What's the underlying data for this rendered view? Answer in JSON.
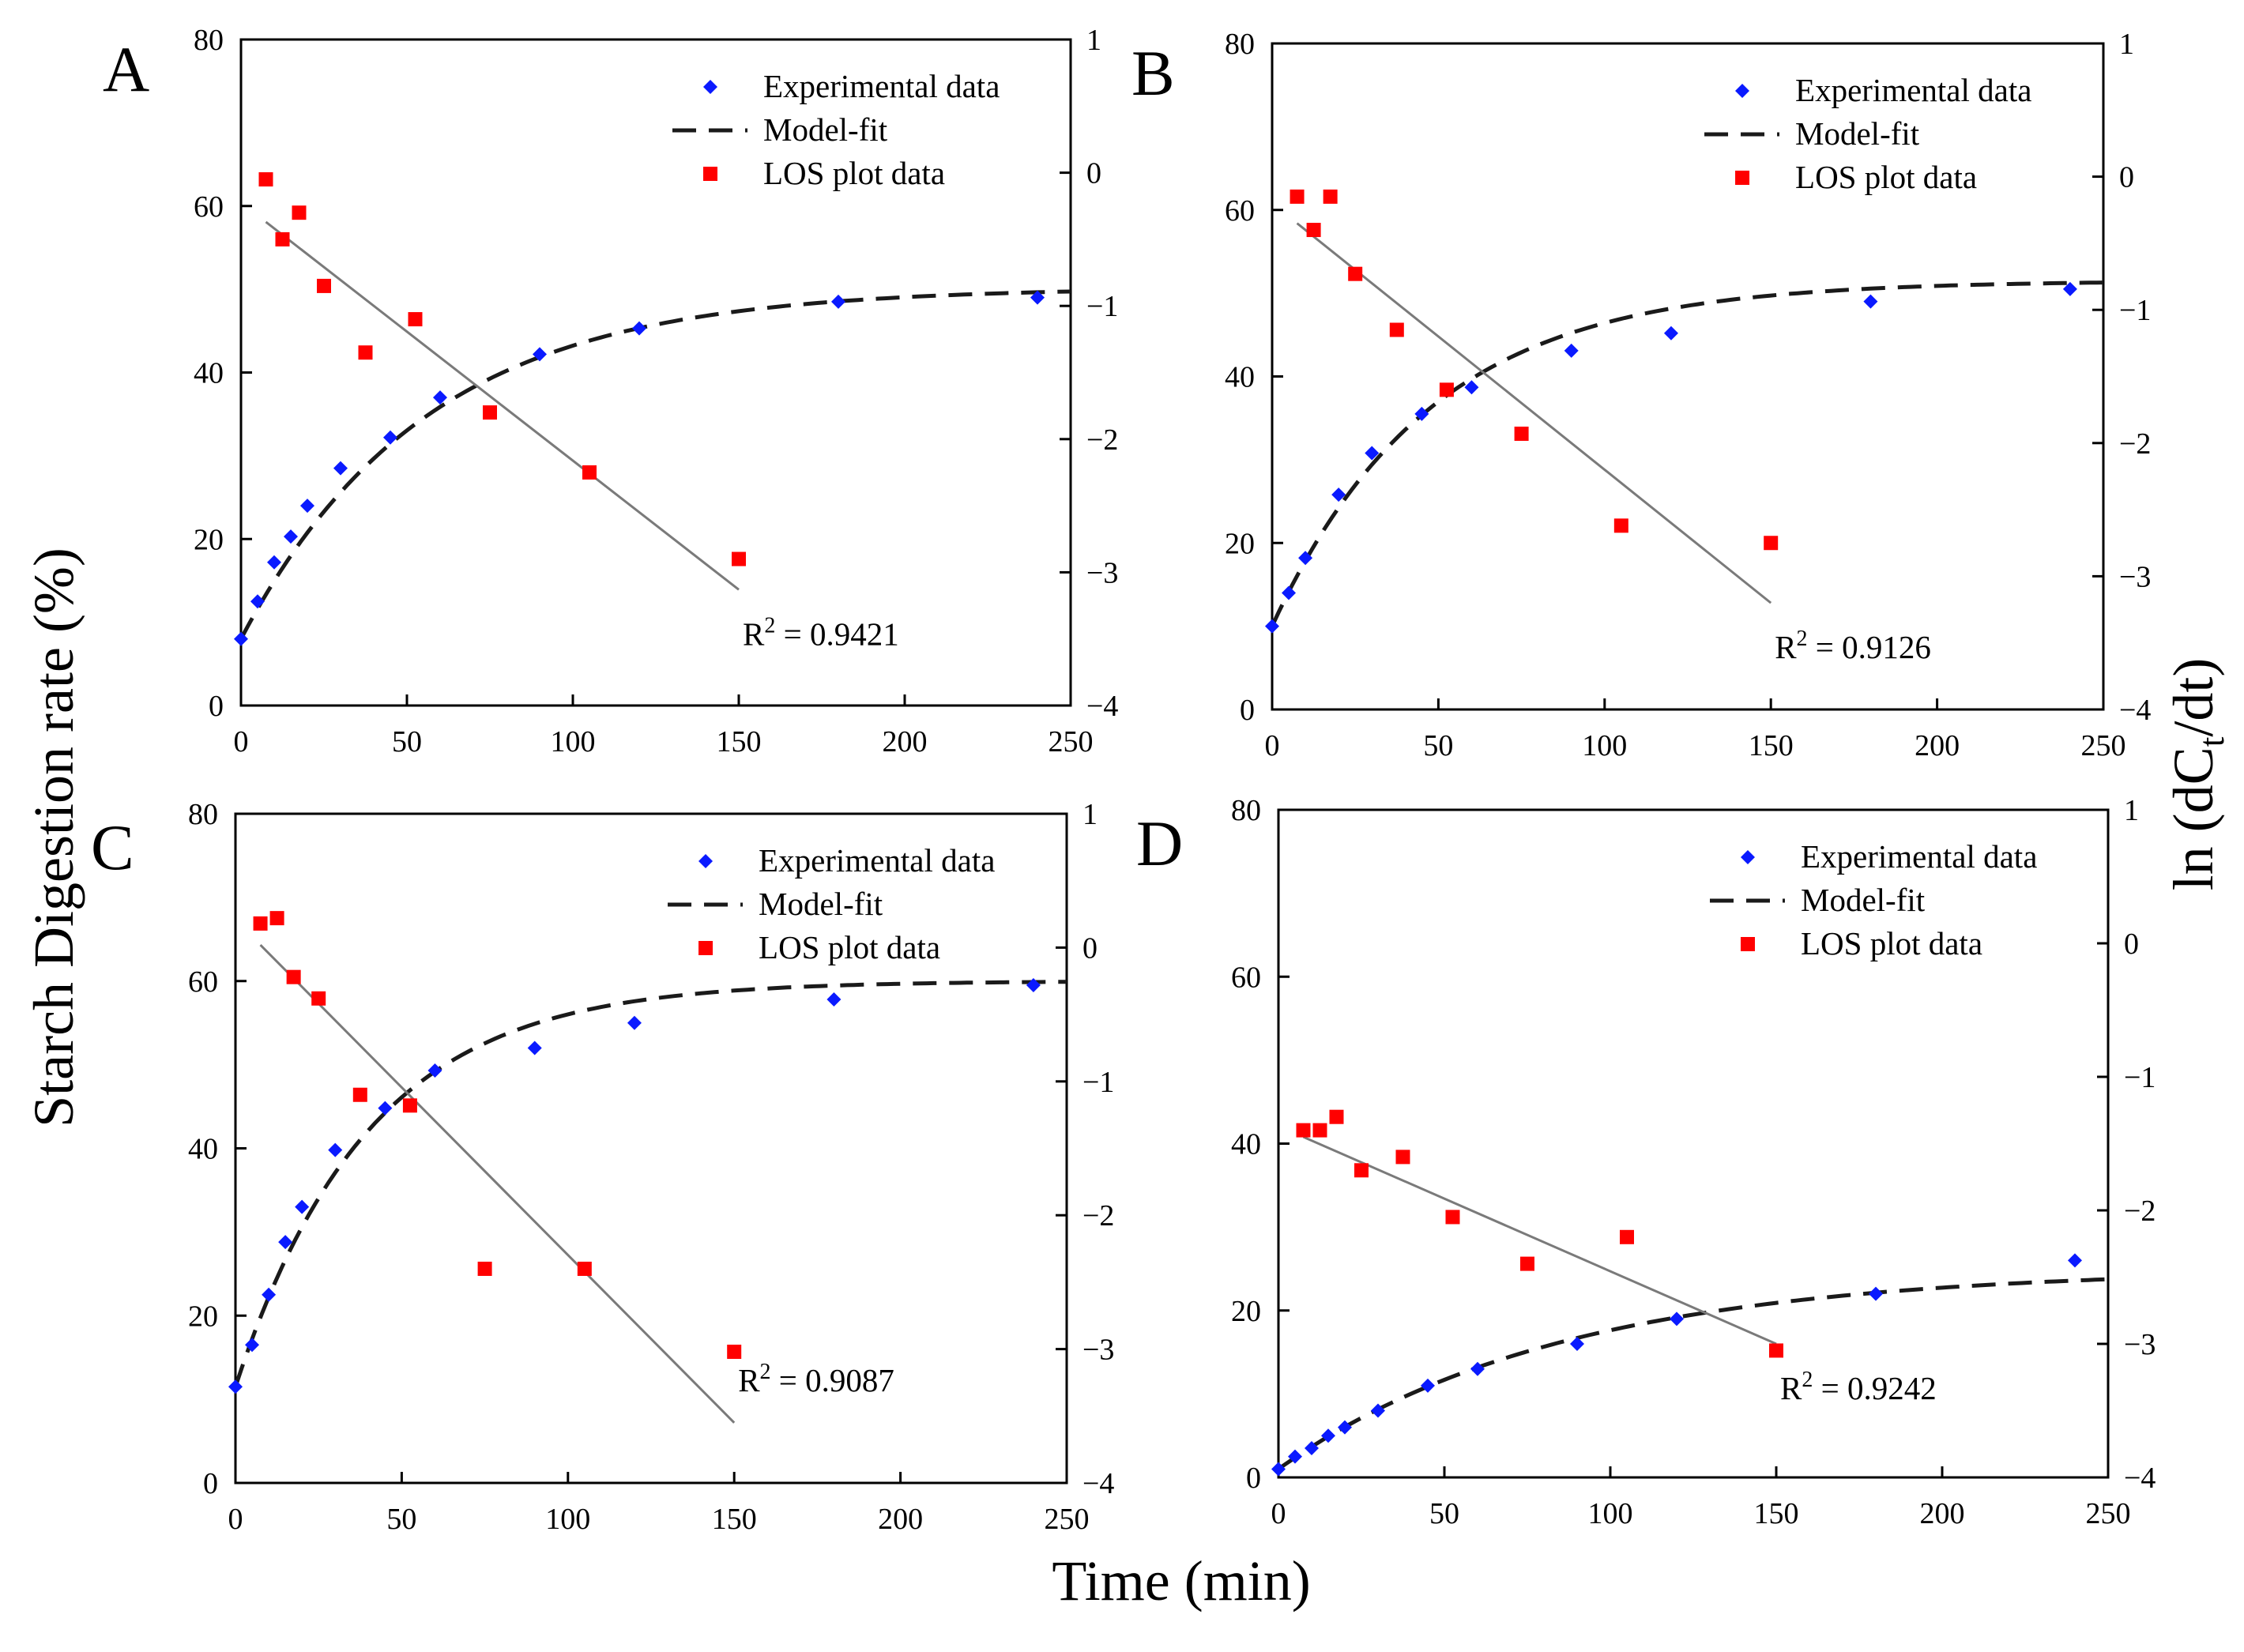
{
  "figure": {
    "ylabel_left": "Starch Digestion rate (%)",
    "ylabel_right": "ln (dC",
    "ylabel_right_sub": "t",
    "ylabel_right_tail": "/dt)",
    "xlabel": "Time (min)"
  },
  "colors": {
    "experimental": "#0a1aff",
    "los": "#ff0000",
    "model": "#1a1a1a",
    "fit_line": "#7a7a7a",
    "axis": "#000000"
  },
  "chart_data": [
    {
      "panel": "A",
      "type": "scatter",
      "legend": [
        "Experimental data",
        "Model-fit",
        "LOS plot data"
      ],
      "xlim": [
        0,
        250
      ],
      "ylim_left": [
        0,
        80
      ],
      "ylim_right": [
        -4,
        1
      ],
      "xticks": [
        0,
        50,
        100,
        150,
        200,
        250
      ],
      "yticks_left": [
        0,
        20,
        40,
        60,
        80
      ],
      "yticks_right": [
        1,
        0,
        -1,
        -2,
        -3,
        -4
      ],
      "experimental": {
        "x": [
          0,
          5,
          10,
          15,
          20,
          30,
          45,
          60,
          90,
          120,
          180,
          240
        ],
        "y": [
          8,
          12.5,
          17.2,
          20.3,
          24,
          28.5,
          32.2,
          37,
          42.2,
          45.3,
          48.5,
          49
        ]
      },
      "model_fit": {
        "C0": 8,
        "Cinf": 50.2,
        "k": 0.018
      },
      "los": {
        "x": [
          7.5,
          12.5,
          17.5,
          25,
          37.5,
          52.5,
          75,
          105,
          150
        ],
        "y": [
          -0.05,
          -0.5,
          -0.3,
          -0.85,
          -1.35,
          -1.1,
          -1.8,
          -2.25,
          -2.9
        ]
      },
      "los_fit": {
        "x": [
          7.5,
          150
        ],
        "y": [
          -0.37,
          -3.13
        ]
      },
      "r2_label": "R",
      "r2_sup": "2",
      "r2_value": " = 0.9421"
    },
    {
      "panel": "B",
      "type": "scatter",
      "legend": [
        "Experimental data",
        "Model-fit",
        "LOS plot data"
      ],
      "xlim": [
        0,
        250
      ],
      "ylim_left": [
        0,
        80
      ],
      "ylim_right": [
        -4,
        1
      ],
      "xticks": [
        0,
        50,
        100,
        150,
        200,
        250
      ],
      "yticks_left": [
        0,
        20,
        40,
        60,
        80
      ],
      "yticks_right": [
        1,
        0,
        -1,
        -2,
        -3,
        -4
      ],
      "experimental": {
        "x": [
          0,
          5,
          10,
          20,
          30,
          45,
          60,
          90,
          120,
          180,
          240
        ],
        "y": [
          10,
          14,
          18.2,
          25.8,
          30.8,
          35.5,
          38.7,
          43.1,
          45.2,
          49,
          50.5
        ]
      },
      "model_fit": {
        "C0": 10,
        "Cinf": 51.5,
        "k": 0.021
      },
      "los": {
        "x": [
          7.5,
          12.5,
          17.5,
          25,
          37.5,
          52.5,
          75,
          105,
          150
        ],
        "y": [
          -0.15,
          -0.4,
          -0.15,
          -0.73,
          -1.15,
          -1.6,
          -1.93,
          -2.62,
          -2.75
        ]
      },
      "los_fit": {
        "x": [
          7.5,
          150
        ],
        "y": [
          -0.35,
          -3.2
        ]
      },
      "r2_label": "R",
      "r2_sup": "2",
      "r2_value": " = 0.9126"
    },
    {
      "panel": "C",
      "type": "scatter",
      "legend": [
        "Experimental data",
        "Model-fit",
        "LOS plot data"
      ],
      "xlim": [
        0,
        250
      ],
      "ylim_left": [
        0,
        80
      ],
      "ylim_right": [
        -4,
        1
      ],
      "xticks": [
        0,
        50,
        100,
        150,
        200,
        250
      ],
      "yticks_left": [
        0,
        20,
        40,
        60,
        80
      ],
      "yticks_right": [
        1,
        0,
        -1,
        -2,
        -3,
        -4
      ],
      "experimental": {
        "x": [
          0,
          5,
          10,
          15,
          20,
          30,
          45,
          60,
          90,
          120,
          180,
          240
        ],
        "y": [
          11.5,
          16.5,
          22.5,
          28.8,
          33,
          39.8,
          44.8,
          49.3,
          52,
          55,
          57.8,
          59.5
        ]
      },
      "model_fit": {
        "C0": 11.5,
        "Cinf": 60,
        "k": 0.025
      },
      "los": {
        "x": [
          7.5,
          12.5,
          17.5,
          25,
          37.5,
          52.5,
          75,
          105,
          150
        ],
        "y": [
          0.18,
          0.22,
          -0.22,
          -0.38,
          -1.1,
          -1.18,
          -2.4,
          -2.4,
          -3.02
        ]
      },
      "los_fit": {
        "x": [
          7.5,
          150
        ],
        "y": [
          0.02,
          -3.55
        ]
      },
      "r2_label": "R",
      "r2_sup": "2",
      "r2_value": " = 0.9087"
    },
    {
      "panel": "D",
      "type": "scatter",
      "legend": [
        "Experimental data",
        "Model-fit",
        "LOS plot data"
      ],
      "xlim": [
        0,
        250
      ],
      "ylim_left": [
        0,
        80
      ],
      "ylim_right": [
        -4,
        1
      ],
      "xticks": [
        0,
        50,
        100,
        150,
        200,
        250
      ],
      "yticks_left": [
        0,
        20,
        40,
        60,
        80
      ],
      "yticks_right": [
        1,
        0,
        -1,
        -2,
        -3,
        -4
      ],
      "experimental": {
        "x": [
          0,
          5,
          10,
          15,
          20,
          30,
          45,
          60,
          90,
          120,
          180,
          240
        ],
        "y": [
          1,
          2.5,
          3.5,
          5,
          6,
          8,
          11,
          13,
          16,
          19,
          22,
          26
        ]
      },
      "model_fit": {
        "C0": 1,
        "Cinf": 25,
        "k": 0.0118
      },
      "los": {
        "x": [
          7.5,
          12.5,
          17.5,
          25,
          37.5,
          52.5,
          75,
          105,
          150
        ],
        "y": [
          -1.4,
          -1.4,
          -1.3,
          -1.7,
          -1.6,
          -2.05,
          -2.4,
          -2.2,
          -3.05
        ]
      },
      "los_fit": {
        "x": [
          7.5,
          150
        ],
        "y": [
          -1.45,
          -3.0
        ]
      },
      "r2_label": "R",
      "r2_sup": "2",
      "r2_value": " = 0.9242"
    }
  ]
}
